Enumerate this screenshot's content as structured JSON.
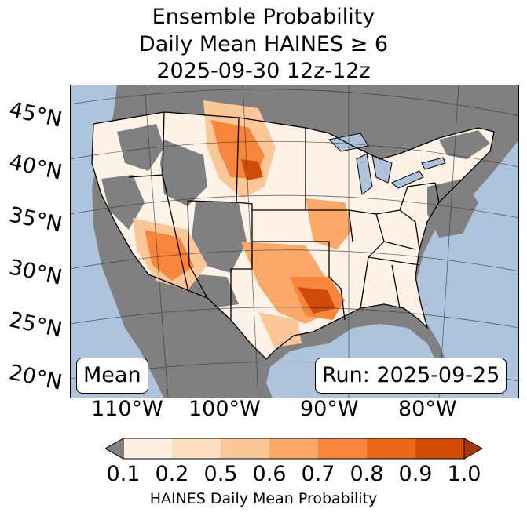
{
  "title": {
    "line1": "Ensemble Probability",
    "line2": "Daily Mean HAINES ≥ 6",
    "line3": "2025-09-30 12z-12z"
  },
  "map": {
    "ocean_color": "#aec4dd",
    "nodata_color": "#808080",
    "lat_labels": [
      "45°N",
      "40°N",
      "35°N",
      "30°N",
      "25°N",
      "20°N"
    ],
    "lon_labels": [
      "110°W",
      "100°W",
      "90°W",
      "80°W"
    ],
    "mean_box": "Mean",
    "run_box": "Run: 2025-09-25"
  },
  "colorbar": {
    "label": "HAINES Daily Mean Probability",
    "ticks": [
      "0.1",
      "0.2",
      "0.5",
      "0.6",
      "0.7",
      "0.8",
      "0.9",
      "1.0"
    ],
    "under_color": "#808080",
    "colors": [
      "#fff0e2",
      "#fde0c2",
      "#fcc797",
      "#fba868",
      "#f7853b",
      "#e96818",
      "#d14b06"
    ],
    "over_color": "#a83703"
  }
}
